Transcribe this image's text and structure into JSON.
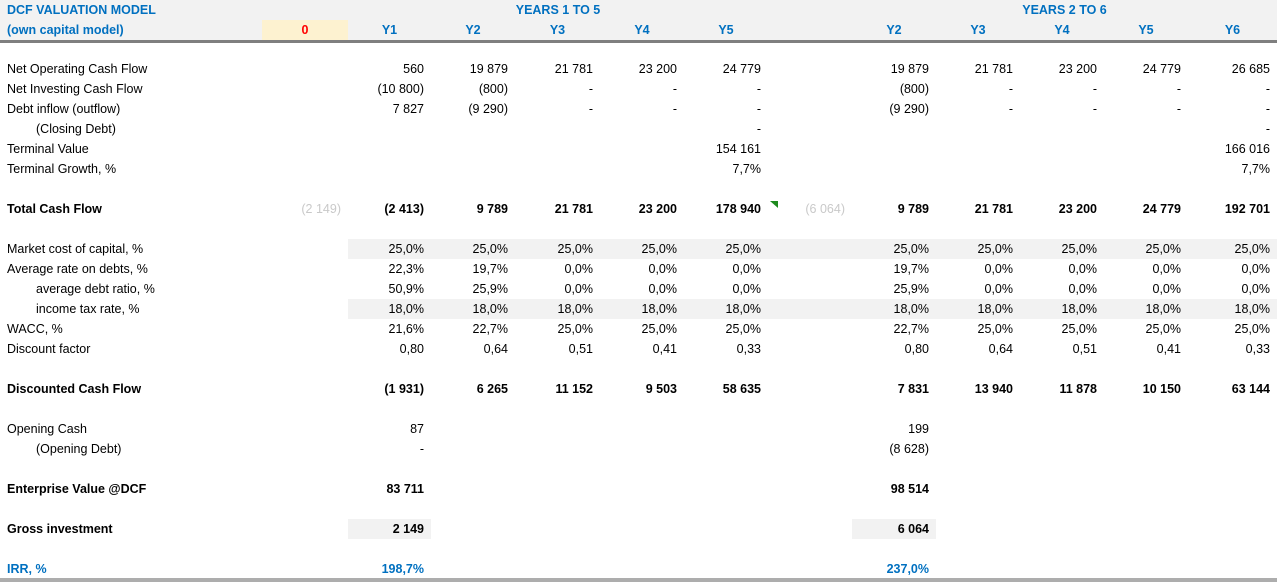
{
  "window": {
    "title_line1": "DCF VALUATION MODEL",
    "title_line2": "(own capital model)"
  },
  "header": {
    "zero_col_label": "0",
    "left_group_label": "YEARS 1 TO 5",
    "right_group_label": "YEARS 2 TO 6",
    "left_year_labels": [
      "Y1",
      "Y2",
      "Y3",
      "Y4",
      "Y5"
    ],
    "right_year_labels": [
      "Y2",
      "Y3",
      "Y4",
      "Y5",
      "Y6"
    ]
  },
  "colors": {
    "accent_blue": "#0070C0",
    "alert_red": "#FF0000",
    "input_cell_bg": "#FDF2D0",
    "header_bg": "#F2F2F2",
    "header_border": "#7F7F7F",
    "shaded_cell_bg": "#F2F2F2",
    "muted_value_text": "#C9C9C9",
    "flag_green": "#1E8A1E",
    "bottom_bar": "#ADADAD"
  },
  "rows": [
    {
      "spacer": true,
      "h": 16
    },
    {
      "label": "Net Operating Cash Flow",
      "left": [
        "560",
        "19 879",
        "21 781",
        "23 200",
        "24 779"
      ],
      "right": [
        "19 879",
        "21 781",
        "23 200",
        "24 779",
        "26 685"
      ]
    },
    {
      "label": "Net Investing Cash Flow",
      "left": [
        "(10 800)",
        "(800)",
        "-",
        "-",
        "-"
      ],
      "right": [
        "(800)",
        "-",
        "-",
        "-",
        "-"
      ]
    },
    {
      "label": "Debt inflow (outflow)",
      "left": [
        "7 827",
        "(9 290)",
        "-",
        "-",
        "-"
      ],
      "right": [
        "(9 290)",
        "-",
        "-",
        "-",
        "-"
      ]
    },
    {
      "label": "(Closing Debt)",
      "indent": true,
      "left": [
        "",
        "",
        "",
        "",
        "-"
      ],
      "right": [
        "",
        "",
        "",
        "",
        "-"
      ]
    },
    {
      "label": "Terminal Value",
      "left": [
        "",
        "",
        "",
        "",
        "154 161"
      ],
      "right": [
        "",
        "",
        "",
        "",
        "166 016"
      ]
    },
    {
      "label": "Terminal Growth, %",
      "left": [
        "",
        "",
        "",
        "",
        "7,7%"
      ],
      "right": [
        "",
        "",
        "",
        "",
        "7,7%"
      ]
    },
    {
      "spacer": true
    },
    {
      "label": "Total Cash Flow",
      "bold": true,
      "col0": "(2 149)",
      "spare": "(6 064)",
      "flag": true,
      "left": [
        "(2 413)",
        "9 789",
        "21 781",
        "23 200",
        "178 940"
      ],
      "right": [
        "9 789",
        "21 781",
        "23 200",
        "24 779",
        "192 701"
      ]
    },
    {
      "spacer": true
    },
    {
      "label": "Market cost of capital, %",
      "shade": "row",
      "left": [
        "25,0%",
        "25,0%",
        "25,0%",
        "25,0%",
        "25,0%"
      ],
      "right": [
        "25,0%",
        "25,0%",
        "25,0%",
        "25,0%",
        "25,0%"
      ]
    },
    {
      "label": "Average rate on debts, %",
      "left": [
        "22,3%",
        "19,7%",
        "0,0%",
        "0,0%",
        "0,0%"
      ],
      "right": [
        "19,7%",
        "0,0%",
        "0,0%",
        "0,0%",
        "0,0%"
      ]
    },
    {
      "label": "average debt ratio, %",
      "indent": true,
      "left": [
        "50,9%",
        "25,9%",
        "0,0%",
        "0,0%",
        "0,0%"
      ],
      "right": [
        "25,9%",
        "0,0%",
        "0,0%",
        "0,0%",
        "0,0%"
      ]
    },
    {
      "label": "income tax rate, %",
      "indent": true,
      "shade": "row",
      "left": [
        "18,0%",
        "18,0%",
        "18,0%",
        "18,0%",
        "18,0%"
      ],
      "right": [
        "18,0%",
        "18,0%",
        "18,0%",
        "18,0%",
        "18,0%"
      ]
    },
    {
      "label": "WACC, %",
      "left": [
        "21,6%",
        "22,7%",
        "25,0%",
        "25,0%",
        "25,0%"
      ],
      "right": [
        "22,7%",
        "25,0%",
        "25,0%",
        "25,0%",
        "25,0%"
      ]
    },
    {
      "label": "Discount factor",
      "left": [
        "0,80",
        "0,64",
        "0,51",
        "0,41",
        "0,33"
      ],
      "right": [
        "0,80",
        "0,64",
        "0,51",
        "0,41",
        "0,33"
      ]
    },
    {
      "spacer": true
    },
    {
      "label": "Discounted Cash Flow",
      "bold": true,
      "left": [
        "(1 931)",
        "6 265",
        "11 152",
        "9 503",
        "58 635"
      ],
      "right": [
        "7 831",
        "13 940",
        "11 878",
        "10 150",
        "63 144"
      ]
    },
    {
      "spacer": true
    },
    {
      "label": "Opening Cash",
      "left": [
        "87",
        "",
        "",
        "",
        ""
      ],
      "right": [
        "199",
        "",
        "",
        "",
        ""
      ]
    },
    {
      "label": "(Opening Debt)",
      "indent": true,
      "left": [
        "-",
        "",
        "",
        "",
        ""
      ],
      "right": [
        "(8 628)",
        "",
        "",
        "",
        ""
      ]
    },
    {
      "spacer": true
    },
    {
      "label": "Enterprise Value @DCF",
      "bold": true,
      "left": [
        "83 711",
        "",
        "",
        "",
        ""
      ],
      "right": [
        "98 514",
        "",
        "",
        "",
        ""
      ]
    },
    {
      "spacer": true
    },
    {
      "label": "Gross investment",
      "bold": true,
      "shade": "first",
      "left": [
        "2 149",
        "",
        "",
        "",
        ""
      ],
      "right": [
        "6 064",
        "",
        "",
        "",
        ""
      ]
    },
    {
      "spacer": true
    },
    {
      "label": "IRR, %",
      "bold": true,
      "blue": true,
      "left": [
        "198,7%",
        "",
        "",
        "",
        ""
      ],
      "right": [
        "237,0%",
        "",
        "",
        "",
        ""
      ]
    }
  ]
}
